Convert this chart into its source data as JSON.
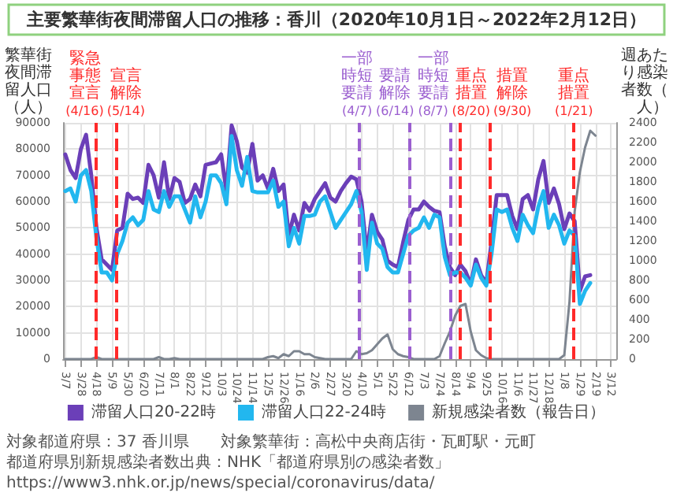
{
  "chart_data": {
    "type": "line",
    "title": "主要繁華街夜間滞留人口の推移：香川（2020年10月1日～2022年2月12日）",
    "ylabel": "繁華街夜間滞留人口（人）",
    "y2label": "週あたり感染者数（人）",
    "x": [
      "2020-03-07",
      "2020-03-14",
      "2020-03-21",
      "2020-03-28",
      "2020-04-04",
      "2020-04-11",
      "2020-04-18",
      "2020-04-25",
      "2020-05-02",
      "2020-05-09",
      "2020-05-16",
      "2020-05-23",
      "2020-05-30",
      "2020-06-06",
      "2020-06-13",
      "2020-06-20",
      "2020-06-27",
      "2020-07-04",
      "2020-07-11",
      "2020-07-18",
      "2020-07-25",
      "2020-08-01",
      "2020-08-08",
      "2020-08-15",
      "2020-08-22",
      "2020-08-29",
      "2020-09-05",
      "2020-09-12",
      "2020-09-19",
      "2020-09-26",
      "2020-10-03",
      "2020-10-10",
      "2020-10-17",
      "2020-10-24",
      "2020-10-31",
      "2020-11-07",
      "2020-11-14",
      "2020-11-21",
      "2020-11-28",
      "2020-12-05",
      "2020-12-12",
      "2020-12-19",
      "2020-12-26",
      "2021-01-02",
      "2021-01-09",
      "2021-01-16",
      "2021-01-23",
      "2021-01-30",
      "2021-02-06",
      "2021-02-13",
      "2021-02-20",
      "2021-02-27",
      "2021-03-06",
      "2021-03-13",
      "2021-03-20",
      "2021-03-27",
      "2021-04-03",
      "2021-04-10",
      "2021-04-17",
      "2021-04-24",
      "2021-05-01",
      "2021-05-08",
      "2021-05-15",
      "2021-05-22",
      "2021-05-29",
      "2021-06-05",
      "2021-06-12",
      "2021-06-19",
      "2021-06-26",
      "2021-07-03",
      "2021-07-10",
      "2021-07-17",
      "2021-07-24",
      "2021-07-31",
      "2021-08-07",
      "2021-08-14",
      "2021-08-21",
      "2021-08-28",
      "2021-09-04",
      "2021-09-11",
      "2021-09-18",
      "2021-09-25",
      "2021-10-02",
      "2021-10-09",
      "2021-10-16",
      "2021-10-23",
      "2021-10-30",
      "2021-11-06",
      "2021-11-13",
      "2021-11-20",
      "2021-11-27",
      "2021-12-04",
      "2021-12-11",
      "2021-12-18",
      "2021-12-25",
      "2022-01-01",
      "2022-01-08",
      "2022-01-15",
      "2022-01-22",
      "2022-01-29",
      "2022-02-05",
      "2022-02-12",
      "2022-02-19"
    ],
    "series": [
      {
        "name": "滞留人口20-22時",
        "color": "#6b3fb8",
        "values": [
          78000,
          72000,
          69000,
          80000,
          85500,
          70000,
          50000,
          38000,
          36000,
          34000,
          49000,
          50000,
          63000,
          61000,
          61500,
          59500,
          74000,
          70000,
          61500,
          75000,
          61000,
          69000,
          67500,
          59500,
          61000,
          66500,
          62000,
          74000,
          74500,
          75000,
          78000,
          64000,
          89000,
          83000,
          73000,
          71000,
          82000,
          68000,
          70000,
          65000,
          72500,
          64000,
          66500,
          47000,
          55000,
          49000,
          59500,
          56500,
          61000,
          64000,
          67000,
          61500,
          60000,
          64000,
          67000,
          69500,
          68500,
          60000,
          40500,
          55000,
          48500,
          45500,
          37500,
          36000,
          35000,
          44500,
          53000,
          57000,
          57000,
          60000,
          58000,
          56500,
          56000,
          43000,
          35000,
          32000,
          36000,
          33500,
          28500,
          38000,
          32000,
          29000,
          44500,
          62500,
          62500,
          62500,
          54500,
          49500,
          61000,
          62500,
          57000,
          68500,
          75500,
          59500,
          65000,
          59000,
          49500,
          55500,
          52500,
          26000,
          31500,
          32000,
          null
        ]
      },
      {
        "name": "滞留人口22-24時",
        "color": "#22b7ef",
        "values": [
          64000,
          65000,
          60000,
          70000,
          72000,
          64000,
          46000,
          33000,
          33000,
          30000,
          40000,
          45000,
          52000,
          54000,
          51000,
          53000,
          64000,
          57000,
          56000,
          64000,
          58000,
          62000,
          62000,
          57000,
          52000,
          62000,
          54000,
          60000,
          70000,
          70000,
          67000,
          59000,
          85000,
          72000,
          66000,
          77000,
          64000,
          63500,
          63500,
          63500,
          68000,
          58000,
          60000,
          43000,
          50000,
          44000,
          54500,
          54500,
          55000,
          60000,
          62000,
          56000,
          50000,
          53000,
          56000,
          59000,
          64000,
          56000,
          34000,
          52000,
          44000,
          42000,
          35000,
          33000,
          33000,
          40000,
          47000,
          49000,
          50000,
          54000,
          50000,
          55000,
          54000,
          39000,
          32000,
          33000,
          33000,
          31000,
          28000,
          36000,
          31000,
          28000,
          40000,
          57000,
          56000,
          57000,
          50000,
          45000,
          55000,
          51000,
          48000,
          58000,
          64000,
          50000,
          55000,
          51000,
          44000,
          49000,
          47000,
          21000,
          26000,
          29000,
          null
        ]
      },
      {
        "name": "新規感染者数（報告日）",
        "color": "#7d8590",
        "axis": "y2",
        "values": [
          0,
          0,
          0,
          0,
          0,
          0,
          20,
          0,
          0,
          0,
          0,
          0,
          0,
          0,
          0,
          0,
          0,
          0,
          20,
          0,
          0,
          10,
          0,
          0,
          0,
          0,
          0,
          0,
          0,
          0,
          0,
          0,
          0,
          0,
          0,
          0,
          0,
          0,
          0,
          20,
          30,
          10,
          50,
          30,
          80,
          80,
          50,
          50,
          20,
          10,
          0,
          0,
          0,
          0,
          0,
          0,
          80,
          50,
          60,
          90,
          150,
          210,
          250,
          100,
          50,
          30,
          20,
          0,
          0,
          0,
          0,
          0,
          30,
          160,
          280,
          440,
          540,
          560,
          280,
          90,
          40,
          10,
          0,
          0,
          0,
          0,
          0,
          0,
          0,
          0,
          0,
          0,
          0,
          0,
          0,
          0,
          40,
          580,
          1500,
          1900,
          2150,
          2320,
          2270
        ]
      }
    ],
    "xlim": [
      "2020-03-04",
      "2022-03-19"
    ],
    "xticks": [
      {
        "value": "2020-03-07",
        "label": "3/7"
      },
      {
        "value": "2020-03-28",
        "label": "3/28"
      },
      {
        "value": "2020-04-18",
        "label": "4/18"
      },
      {
        "value": "2020-05-09",
        "label": "5/9"
      },
      {
        "value": "2020-05-30",
        "label": "5/30"
      },
      {
        "value": "2020-06-20",
        "label": "6/20"
      },
      {
        "value": "2020-07-11",
        "label": "7/11"
      },
      {
        "value": "2020-08-01",
        "label": "8/1"
      },
      {
        "value": "2020-08-22",
        "label": "8/22"
      },
      {
        "value": "2020-09-12",
        "label": "9/12"
      },
      {
        "value": "2020-10-03",
        "label": "10/3"
      },
      {
        "value": "2020-10-24",
        "label": "10/24"
      },
      {
        "value": "2020-11-14",
        "label": "11/14"
      },
      {
        "value": "2020-12-05",
        "label": "12/5"
      },
      {
        "value": "2020-12-26",
        "label": "12/26"
      },
      {
        "value": "2021-01-16",
        "label": "1/16"
      },
      {
        "value": "2021-02-06",
        "label": "2/6"
      },
      {
        "value": "2021-02-27",
        "label": "2/27"
      },
      {
        "value": "2021-03-20",
        "label": "3/20"
      },
      {
        "value": "2021-04-10",
        "label": "4/10"
      },
      {
        "value": "2021-05-01",
        "label": "5/1"
      },
      {
        "value": "2021-05-22",
        "label": "5/22"
      },
      {
        "value": "2021-06-12",
        "label": "6/12"
      },
      {
        "value": "2021-07-03",
        "label": "7/3"
      },
      {
        "value": "2021-07-24",
        "label": "7/24"
      },
      {
        "value": "2021-08-14",
        "label": "8/14"
      },
      {
        "value": "2021-09-04",
        "label": "9/4"
      },
      {
        "value": "2021-09-25",
        "label": "9/25"
      },
      {
        "value": "2021-10-16",
        "label": "10/16"
      },
      {
        "value": "2021-11-06",
        "label": "11/6"
      },
      {
        "value": "2021-11-27",
        "label": "11/27"
      },
      {
        "value": "2021-12-18",
        "label": "12/18"
      },
      {
        "value": "2022-01-08",
        "label": "1/8"
      },
      {
        "value": "2022-01-29",
        "label": "1/29"
      },
      {
        "value": "2022-02-19",
        "label": "2/19"
      },
      {
        "value": "2022-03-12",
        "label": "3/12"
      }
    ],
    "ylim": [
      0,
      90000
    ],
    "yticks": [
      0,
      10000,
      20000,
      30000,
      40000,
      50000,
      60000,
      70000,
      80000,
      90000
    ],
    "y2lim": [
      0,
      2400
    ],
    "y2ticks": [
      0,
      200,
      400,
      600,
      800,
      1000,
      1200,
      1400,
      1600,
      1800,
      2000,
      2200,
      2400
    ],
    "ref_lines": [
      {
        "axis": "x",
        "value": "2020-04-16",
        "label": "緊急事態宣言(4/16)",
        "color": "#ff2a2a",
        "line_style": "dashed"
      },
      {
        "axis": "x",
        "value": "2020-05-14",
        "label": "宣言解除(5/14)",
        "color": "#ff2a2a",
        "line_style": "dashed"
      },
      {
        "axis": "x",
        "value": "2021-04-07",
        "label": "一部時短要請(4/7)",
        "color": "#9b5fd0",
        "line_style": "dashed"
      },
      {
        "axis": "x",
        "value": "2021-06-14",
        "label": "要請解除(6/14)",
        "color": "#9b5fd0",
        "line_style": "dashed"
      },
      {
        "axis": "x",
        "value": "2021-08-07",
        "label": "一部時短要請(8/7)",
        "color": "#9b5fd0",
        "line_style": "dashed"
      },
      {
        "axis": "x",
        "value": "2021-08-20",
        "label": "重点措置(8/20)",
        "color": "#ff2a2a",
        "line_style": "dashed"
      },
      {
        "axis": "x",
        "value": "2021-09-30",
        "label": "措置解除(9/30)",
        "color": "#ff2a2a",
        "line_style": "dashed"
      },
      {
        "axis": "x",
        "value": "2022-01-21",
        "label": "重点措置(1/21)",
        "color": "#ff2a2a",
        "line_style": "dashed"
      }
    ],
    "annotations": [
      "対象都道府県：37 香川県",
      "対象繁華街：高松中央商店街・瓦町駅・元町",
      "都道府県別新規感染者数出典：NHK「都道府県別の感染者数」",
      "https://www3.nhk.or.jp/news/special/coronavirus/data/"
    ],
    "grid": true,
    "legend": "bottom",
    "marker": "none"
  }
}
